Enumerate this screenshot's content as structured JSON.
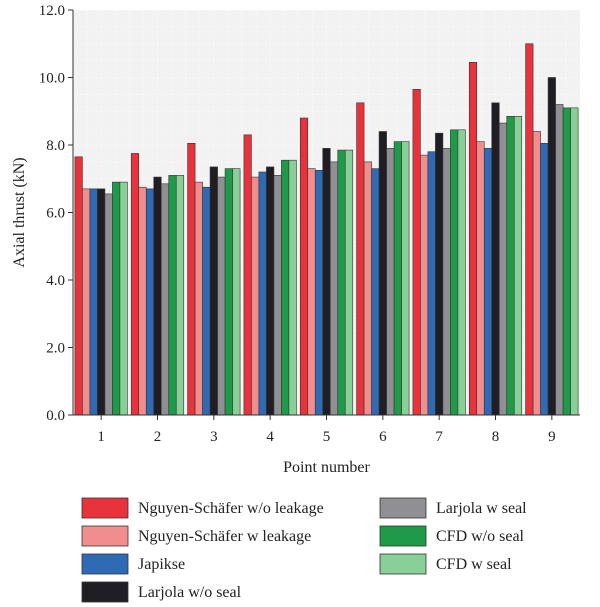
{
  "chart_data": {
    "type": "bar",
    "xlabel": "Point number",
    "ylabel": "Axial thrust (kN)",
    "ylim": [
      0,
      12
    ],
    "yticks": [
      "0.0",
      "2.0",
      "4.0",
      "6.0",
      "8.0",
      "10.0",
      "12.0"
    ],
    "categories": [
      "1",
      "2",
      "3",
      "4",
      "5",
      "6",
      "7",
      "8",
      "9"
    ],
    "grid": true,
    "legend_position": "bottom",
    "series": [
      {
        "name": "Nguyen-Schäfer w/o leakage",
        "color": "#e8323c",
        "values": [
          7.65,
          7.75,
          8.05,
          8.3,
          8.8,
          9.25,
          9.65,
          10.45,
          11.0
        ]
      },
      {
        "name": "Nguyen-Schäfer w leakage",
        "color": "#f08d8d",
        "values": [
          6.7,
          6.75,
          6.9,
          7.05,
          7.3,
          7.5,
          7.7,
          8.1,
          8.4
        ]
      },
      {
        "name": "Japikse",
        "color": "#2f6ab5",
        "values": [
          6.7,
          6.7,
          6.75,
          7.2,
          7.25,
          7.3,
          7.8,
          7.9,
          8.05
        ]
      },
      {
        "name": "Larjola w/o seal",
        "color": "#1e1e24",
        "values": [
          6.7,
          7.05,
          7.35,
          7.35,
          7.9,
          8.4,
          8.35,
          9.25,
          10.0
        ]
      },
      {
        "name": "Larjola w seal",
        "color": "#8f8f94",
        "values": [
          6.55,
          6.85,
          7.05,
          7.1,
          7.5,
          7.9,
          7.9,
          8.65,
          9.2
        ]
      },
      {
        "name": "CFD w/o seal",
        "color": "#1f9a48",
        "values": [
          6.9,
          7.1,
          7.3,
          7.55,
          7.85,
          8.1,
          8.45,
          8.85,
          9.1
        ]
      },
      {
        "name": "CFD w seal",
        "color": "#88cf98",
        "values": [
          6.9,
          7.1,
          7.3,
          7.55,
          7.85,
          8.1,
          8.45,
          8.85,
          9.1
        ]
      }
    ]
  }
}
